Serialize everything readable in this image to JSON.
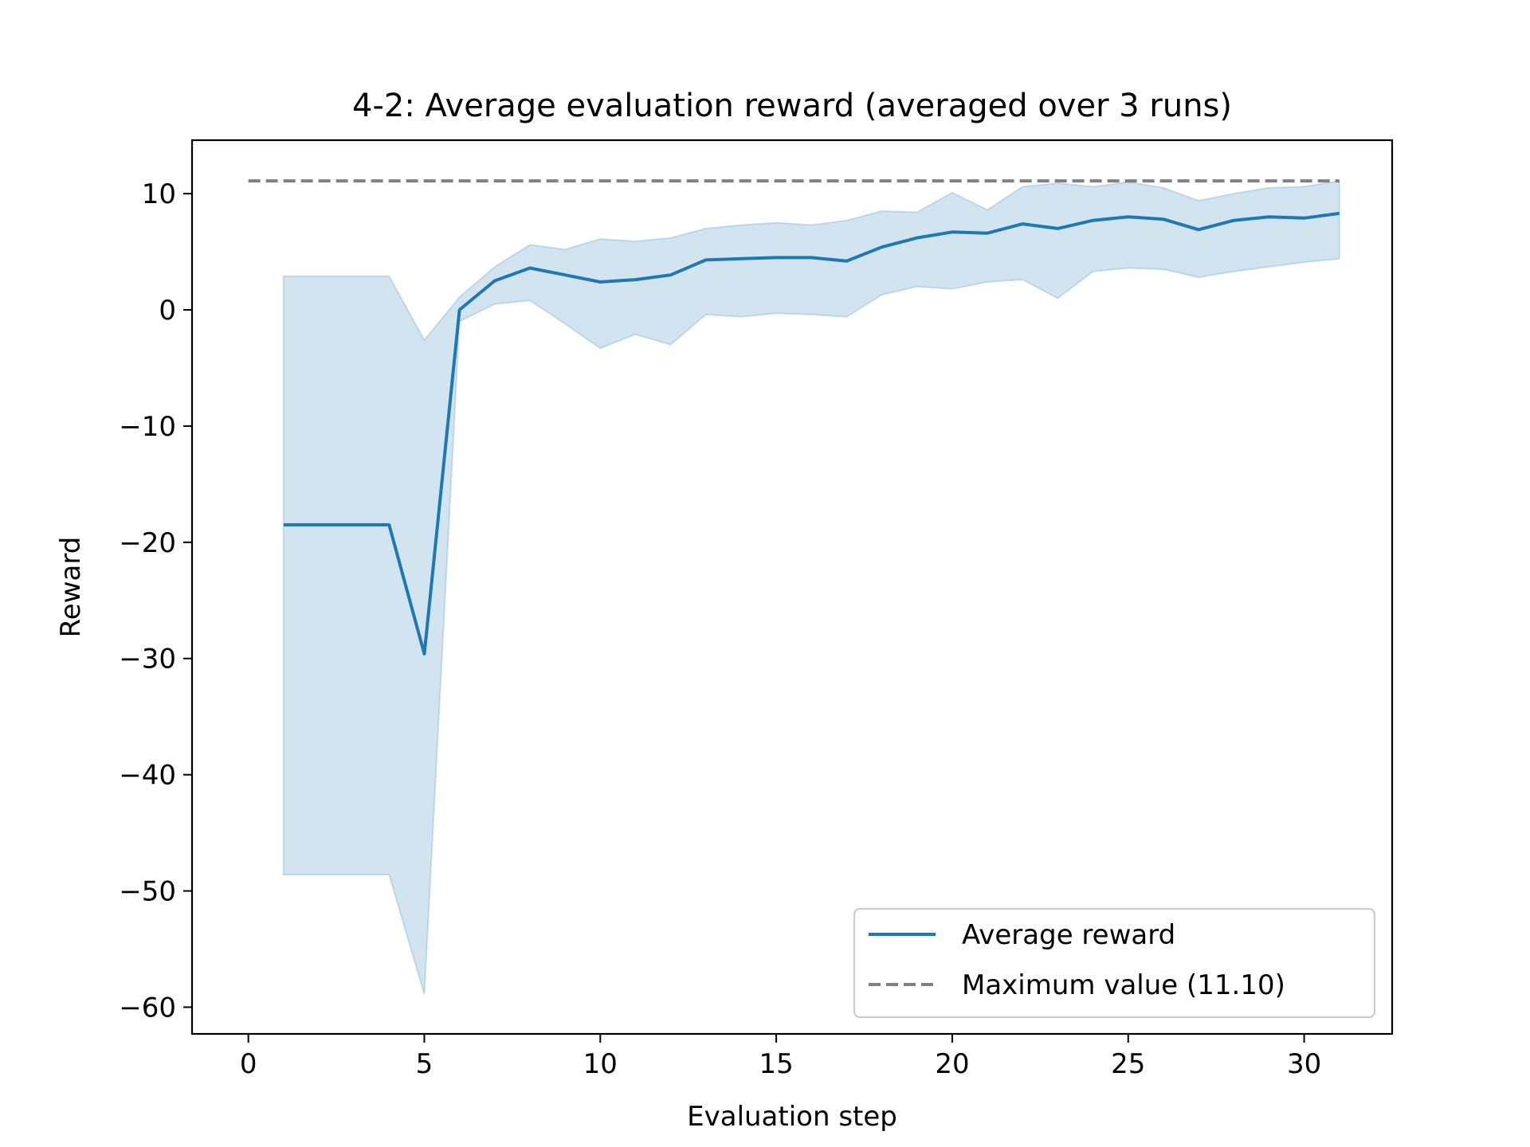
{
  "chart_data": {
    "type": "line",
    "title": "4-2: Average evaluation reward (averaged over 3 runs)",
    "xlabel": "Evaluation step",
    "ylabel": "Reward",
    "xlim": [
      -1.6,
      32.5
    ],
    "ylim": [
      -62.3,
      14.6
    ],
    "xticks": [
      0,
      5,
      10,
      15,
      20,
      25,
      30
    ],
    "yticks": [
      10,
      0,
      -10,
      -20,
      -30,
      -40,
      -50,
      -60
    ],
    "tick_labels_x": [
      "0",
      "5",
      "10",
      "15",
      "20",
      "25",
      "30"
    ],
    "tick_labels_y": [
      "10",
      "0",
      "−10",
      "−20",
      "−30",
      "−40",
      "−50",
      "−60"
    ],
    "grid": false,
    "legend_position": "lower-right",
    "x": [
      1,
      2,
      3,
      4,
      5,
      6,
      7,
      8,
      9,
      10,
      11,
      12,
      13,
      14,
      15,
      16,
      17,
      18,
      19,
      20,
      21,
      22,
      23,
      24,
      25,
      26,
      27,
      28,
      29,
      30,
      31
    ],
    "series": [
      {
        "name": "Average reward",
        "color": "#1f77b4",
        "style": "solid",
        "values": [
          -18.5,
          -18.5,
          -18.5,
          -18.5,
          -29.6,
          0.0,
          2.5,
          3.6,
          3.0,
          2.4,
          2.6,
          3.0,
          4.3,
          4.4,
          4.5,
          4.5,
          4.2,
          5.4,
          6.2,
          6.7,
          6.6,
          7.4,
          7.0,
          7.7,
          8.0,
          7.8,
          6.9,
          7.7,
          8.0,
          7.9,
          8.3
        ],
        "band_upper": [
          2.9,
          2.9,
          2.9,
          2.9,
          -2.6,
          1.1,
          3.7,
          5.6,
          5.2,
          6.1,
          5.9,
          6.2,
          7.0,
          7.3,
          7.5,
          7.3,
          7.7,
          8.5,
          8.4,
          10.1,
          8.6,
          10.6,
          10.9,
          10.6,
          11.0,
          10.5,
          9.4,
          10.0,
          10.5,
          10.6,
          11.1
        ],
        "band_lower": [
          -48.6,
          -48.6,
          -48.6,
          -48.6,
          -58.9,
          -1.0,
          0.5,
          0.8,
          -1.2,
          -3.3,
          -2.1,
          -3.0,
          -0.4,
          -0.6,
          -0.3,
          -0.4,
          -0.6,
          1.3,
          2.0,
          1.8,
          2.4,
          2.6,
          1.0,
          3.3,
          3.6,
          3.5,
          2.8,
          3.3,
          3.7,
          4.1,
          4.4
        ],
        "band_color": "#1f77b4"
      },
      {
        "name": "Maximum value (11.10)",
        "color": "#808080",
        "style": "dashed",
        "x": [
          0,
          31
        ],
        "values": [
          11.1,
          11.1
        ]
      }
    ]
  }
}
